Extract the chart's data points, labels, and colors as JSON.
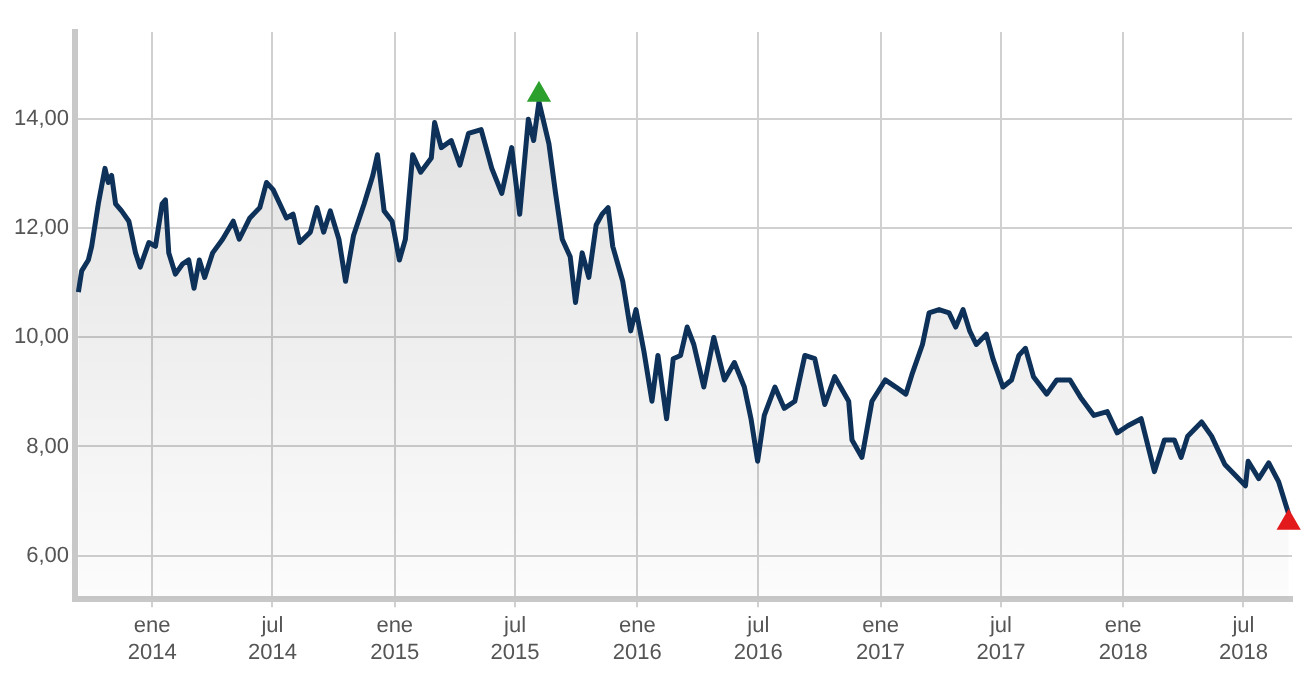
{
  "chart_data": {
    "type": "area",
    "xlim": [
      "2013-09-07",
      "2018-09-12"
    ],
    "ylim": [
      5.2,
      15.6
    ],
    "xticks": [
      {
        "value": "2014-01-01",
        "label": "ene\n2014"
      },
      {
        "value": "2014-07-01",
        "label": "jul\n2014"
      },
      {
        "value": "2015-01-01",
        "label": "ene\n2015"
      },
      {
        "value": "2015-07-01",
        "label": "jul\n2015"
      },
      {
        "value": "2016-01-01",
        "label": "ene\n2016"
      },
      {
        "value": "2016-07-01",
        "label": "jul\n2016"
      },
      {
        "value": "2017-01-01",
        "label": "ene\n2017"
      },
      {
        "value": "2017-07-01",
        "label": "jul\n2017"
      },
      {
        "value": "2018-01-01",
        "label": "ene\n2018"
      },
      {
        "value": "2018-07-01",
        "label": "jul\n2018"
      }
    ],
    "yticks": [
      {
        "value": 6,
        "label": "6,00"
      },
      {
        "value": 8,
        "label": "8,00"
      },
      {
        "value": 10,
        "label": "10,00"
      },
      {
        "value": 12,
        "label": "12,00"
      },
      {
        "value": 14,
        "label": "14,00"
      }
    ],
    "grid": true,
    "legend": false,
    "marker": "none",
    "line_style": "solid",
    "series": [
      {
        "color": "#0d3158",
        "x": [
          "2013-09-12",
          "2013-09-17",
          "2013-09-27",
          "2013-10-02",
          "2013-10-12",
          "2013-10-22",
          "2013-10-27",
          "2013-11-01",
          "2013-11-07",
          "2013-11-16",
          "2013-11-27",
          "2013-12-07",
          "2013-12-14",
          "2013-12-27",
          "2014-01-06",
          "2014-01-16",
          "2014-01-21",
          "2014-01-26",
          "2014-02-05",
          "2014-02-16",
          "2014-02-25",
          "2014-03-05",
          "2014-03-13",
          "2014-03-21",
          "2014-04-02",
          "2014-04-17",
          "2014-05-03",
          "2014-05-12",
          "2014-05-28",
          "2014-06-12",
          "2014-06-22",
          "2014-07-02",
          "2014-07-12",
          "2014-07-22",
          "2014-08-01",
          "2014-08-11",
          "2014-08-27",
          "2014-09-06",
          "2014-09-16",
          "2014-09-26",
          "2014-10-09",
          "2014-10-19",
          "2014-10-31",
          "2014-11-16",
          "2014-11-29",
          "2014-12-06",
          "2014-12-16",
          "2014-12-28",
          "2015-01-08",
          "2015-01-17",
          "2015-01-28",
          "2015-02-09",
          "2015-02-25",
          "2015-03-02",
          "2015-03-12",
          "2015-03-27",
          "2015-04-09",
          "2015-04-22",
          "2015-05-11",
          "2015-05-27",
          "2015-06-11",
          "2015-06-26",
          "2015-07-08",
          "2015-07-21",
          "2015-07-29",
          "2015-08-06",
          "2015-08-21",
          "2015-08-31",
          "2015-09-10",
          "2015-09-22",
          "2015-09-30",
          "2015-10-10",
          "2015-10-20",
          "2015-10-31",
          "2015-11-09",
          "2015-11-18",
          "2015-11-25",
          "2015-12-10",
          "2015-12-22",
          "2015-12-30",
          "2016-01-11",
          "2016-01-23",
          "2016-02-01",
          "2016-02-14",
          "2016-02-24",
          "2016-03-06",
          "2016-03-16",
          "2016-03-26",
          "2016-04-10",
          "2016-04-25",
          "2016-05-11",
          "2016-05-26",
          "2016-06-10",
          "2016-06-20",
          "2016-06-30",
          "2016-07-10",
          "2016-07-26",
          "2016-08-09",
          "2016-08-25",
          "2016-09-09",
          "2016-09-24",
          "2016-10-09",
          "2016-10-24",
          "2016-11-14",
          "2016-11-19",
          "2016-12-04",
          "2016-12-19",
          "2017-01-08",
          "2017-01-24",
          "2017-02-08",
          "2017-02-18",
          "2017-03-05",
          "2017-03-15",
          "2017-03-30",
          "2017-04-14",
          "2017-04-24",
          "2017-05-05",
          "2017-05-15",
          "2017-05-25",
          "2017-06-09",
          "2017-06-19",
          "2017-07-04",
          "2017-07-17",
          "2017-07-28",
          "2017-08-07",
          "2017-08-19",
          "2017-09-08",
          "2017-09-23",
          "2017-10-13",
          "2017-10-29",
          "2017-11-18",
          "2017-12-08",
          "2017-12-23",
          "2018-01-08",
          "2018-01-28",
          "2018-02-17",
          "2018-03-04",
          "2018-03-19",
          "2018-03-29",
          "2018-04-08",
          "2018-04-29",
          "2018-05-14",
          "2018-06-03",
          "2018-06-18",
          "2018-07-04",
          "2018-07-08",
          "2018-07-24",
          "2018-08-08",
          "2018-08-23",
          "2018-09-07"
        ],
        "values": [
          10.83,
          11.22,
          11.42,
          11.67,
          12.45,
          13.1,
          12.84,
          12.97,
          12.45,
          12.32,
          12.13,
          11.55,
          11.29,
          11.74,
          11.67,
          12.45,
          12.52,
          11.55,
          11.16,
          11.35,
          11.42,
          10.9,
          11.42,
          11.1,
          11.55,
          11.8,
          12.13,
          11.8,
          12.19,
          12.38,
          12.84,
          12.71,
          12.45,
          12.19,
          12.26,
          11.74,
          11.93,
          12.38,
          11.93,
          12.32,
          11.8,
          11.03,
          11.87,
          12.45,
          12.97,
          13.35,
          12.32,
          12.13,
          11.42,
          11.8,
          13.35,
          13.03,
          13.29,
          13.94,
          13.48,
          13.61,
          13.16,
          13.74,
          13.81,
          13.1,
          12.64,
          13.48,
          12.26,
          14.0,
          13.61,
          14.32,
          13.55,
          12.64,
          11.8,
          11.48,
          10.64,
          11.55,
          11.1,
          12.06,
          12.26,
          12.38,
          11.67,
          11.03,
          10.12,
          10.51,
          9.74,
          8.83,
          9.67,
          8.51,
          9.61,
          9.67,
          10.19,
          9.87,
          9.09,
          10.0,
          9.22,
          9.54,
          9.09,
          8.51,
          7.73,
          8.57,
          9.09,
          8.7,
          8.83,
          9.67,
          9.61,
          8.77,
          9.28,
          8.83,
          8.12,
          7.8,
          8.83,
          9.22,
          9.09,
          8.96,
          9.35,
          9.87,
          10.45,
          10.51,
          10.45,
          10.19,
          10.51,
          10.12,
          9.87,
          10.06,
          9.61,
          9.09,
          9.22,
          9.67,
          9.8,
          9.28,
          8.96,
          9.22,
          9.22,
          8.9,
          8.57,
          8.64,
          8.25,
          8.38,
          8.51,
          7.54,
          8.12,
          8.12,
          7.8,
          8.19,
          8.45,
          8.19,
          7.67,
          7.48,
          7.28,
          7.73,
          7.41,
          7.7,
          7.35,
          6.76
        ]
      },
      {
        "type": "scatter",
        "marker": "triangle",
        "x": [
          "2015-08-06",
          "2018-09-07"
        ],
        "values": [
          14.45,
          6.6
        ],
        "colors": [
          "#2ca02c",
          "#e31a1c"
        ]
      }
    ]
  }
}
